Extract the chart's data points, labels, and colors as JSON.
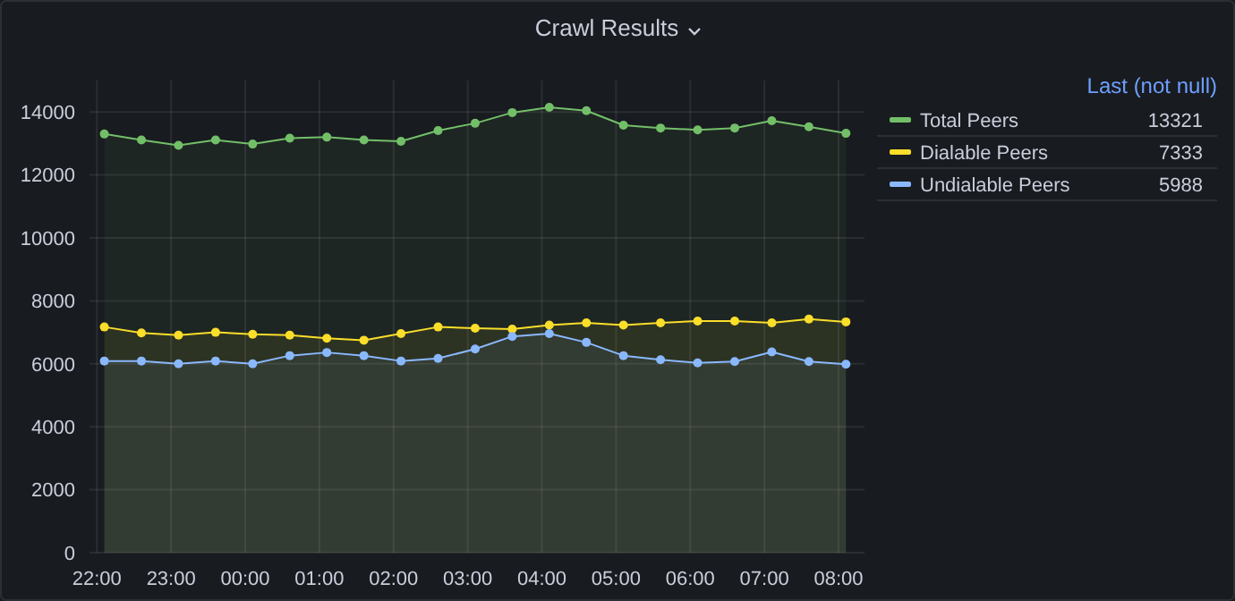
{
  "chart_data": {
    "type": "area",
    "title": "Crawl Results",
    "legend_title": "Last (not null)",
    "x": [
      "2000-01-01T22:06",
      "2000-01-01T22:36",
      "2000-01-01T23:06",
      "2000-01-01T23:36",
      "2000-01-02T00:06",
      "2000-01-02T00:36",
      "2000-01-02T01:06",
      "2000-01-02T01:36",
      "2000-01-02T02:06",
      "2000-01-02T02:36",
      "2000-01-02T03:06",
      "2000-01-02T03:36",
      "2000-01-02T04:06",
      "2000-01-02T04:36",
      "2000-01-02T05:06",
      "2000-01-02T05:36",
      "2000-01-02T06:06",
      "2000-01-02T06:36",
      "2000-01-02T07:06",
      "2000-01-02T07:36",
      "2000-01-02T08:06"
    ],
    "series": [
      {
        "name": "Total Peers",
        "color": "#73bf69",
        "values": [
          13300,
          13110,
          12940,
          13110,
          12980,
          13170,
          13200,
          13110,
          13070,
          13410,
          13640,
          13980,
          14150,
          14040,
          13580,
          13490,
          13430,
          13490,
          13720,
          13530,
          13321
        ]
      },
      {
        "name": "Dialable Peers",
        "color": "#fade2a",
        "values": [
          7170,
          6980,
          6910,
          7000,
          6940,
          6910,
          6810,
          6750,
          6960,
          7170,
          7130,
          7100,
          7230,
          7300,
          7230,
          7300,
          7360,
          7360,
          7300,
          7420,
          7333
        ]
      },
      {
        "name": "Undialable Peers",
        "color": "#8ab8ff",
        "values": [
          6090,
          6090,
          6000,
          6090,
          6000,
          6260,
          6360,
          6260,
          6090,
          6170,
          6470,
          6870,
          6960,
          6680,
          6260,
          6130,
          6030,
          6070,
          6380,
          6070,
          5988
        ]
      }
    ],
    "annotations": [
      "13321",
      "7333",
      "5988"
    ],
    "xlim": [
      "2000-01-01T21:54",
      "2000-01-02T08:21"
    ],
    "xticks": [
      {
        "value": "2000-01-01T22:00",
        "label": "22:00"
      },
      {
        "value": "2000-01-01T23:00",
        "label": "23:00"
      },
      {
        "value": "2000-01-02T00:00",
        "label": "00:00"
      },
      {
        "value": "2000-01-02T01:00",
        "label": "01:00"
      },
      {
        "value": "2000-01-02T02:00",
        "label": "02:00"
      },
      {
        "value": "2000-01-02T03:00",
        "label": "03:00"
      },
      {
        "value": "2000-01-02T04:00",
        "label": "04:00"
      },
      {
        "value": "2000-01-02T05:00",
        "label": "05:00"
      },
      {
        "value": "2000-01-02T06:00",
        "label": "06:00"
      },
      {
        "value": "2000-01-02T07:00",
        "label": "07:00"
      },
      {
        "value": "2000-01-02T08:00",
        "label": "08:00"
      }
    ],
    "ylim": [
      0,
      15000
    ],
    "yticks": [
      0,
      2000,
      4000,
      6000,
      8000,
      10000,
      12000,
      14000
    ],
    "grid": true,
    "legend": "right",
    "marker": "circle",
    "line_style": "solid"
  }
}
